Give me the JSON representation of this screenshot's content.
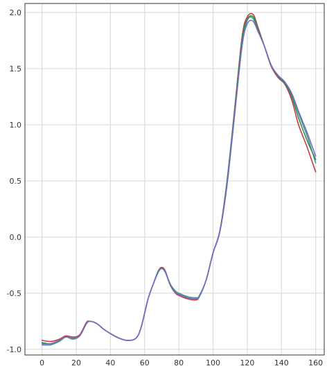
{
  "chart_data": {
    "type": "line",
    "title": "",
    "xlabel": "",
    "ylabel": "",
    "xlim": [
      -10,
      165
    ],
    "ylim": [
      -1.05,
      2.08
    ],
    "xticks": [
      0,
      20,
      40,
      60,
      80,
      100,
      120,
      140,
      160
    ],
    "yticks": [
      -1.0,
      -0.5,
      0.0,
      0.5,
      1.0,
      1.5,
      2.0
    ],
    "xtick_labels": [
      "0",
      "20",
      "40",
      "60",
      "80",
      "100",
      "120",
      "140",
      "160"
    ],
    "ytick_labels": [
      "-1.0",
      "-0.5",
      "0.0",
      "0.5",
      "1.0",
      "1.5",
      "2.0"
    ],
    "grid": true,
    "background": "#ffffff",
    "grid_color": "#dcdcdc",
    "x": [
      0,
      5,
      10,
      14,
      18,
      22,
      26,
      28,
      32,
      36,
      40,
      45,
      50,
      55,
      58,
      62,
      65,
      68,
      70,
      72,
      75,
      78,
      80,
      85,
      90,
      92,
      96,
      100,
      104,
      108,
      112,
      116,
      118,
      120,
      122,
      124,
      126,
      130,
      134,
      138,
      142,
      146,
      150,
      155,
      160
    ],
    "series": [
      {
        "color": "#4a9a8a",
        "values": [
          -0.96,
          -0.96,
          -0.93,
          -0.89,
          -0.91,
          -0.88,
          -0.77,
          -0.75,
          -0.77,
          -0.82,
          -0.86,
          -0.9,
          -0.92,
          -0.9,
          -0.8,
          -0.55,
          -0.42,
          -0.31,
          -0.28,
          -0.31,
          -0.42,
          -0.48,
          -0.5,
          -0.53,
          -0.54,
          -0.52,
          -0.38,
          -0.14,
          0.05,
          0.45,
          1.0,
          1.6,
          1.82,
          1.93,
          1.96,
          1.93,
          1.85,
          1.7,
          1.53,
          1.44,
          1.38,
          1.27,
          1.1,
          0.9,
          0.66
        ]
      },
      {
        "color": "#cc3b3b",
        "values": [
          -0.92,
          -0.93,
          -0.91,
          -0.88,
          -0.89,
          -0.87,
          -0.76,
          -0.75,
          -0.77,
          -0.82,
          -0.86,
          -0.9,
          -0.92,
          -0.9,
          -0.8,
          -0.55,
          -0.42,
          -0.3,
          -0.27,
          -0.3,
          -0.43,
          -0.5,
          -0.52,
          -0.55,
          -0.56,
          -0.53,
          -0.38,
          -0.14,
          0.06,
          0.48,
          1.05,
          1.66,
          1.88,
          1.96,
          1.99,
          1.97,
          1.88,
          1.7,
          1.52,
          1.42,
          1.36,
          1.22,
          1.0,
          0.8,
          0.58
        ]
      },
      {
        "color": "#2e8b57",
        "values": [
          -0.94,
          -0.95,
          -0.92,
          -0.89,
          -0.9,
          -0.88,
          -0.77,
          -0.75,
          -0.77,
          -0.82,
          -0.86,
          -0.9,
          -0.92,
          -0.9,
          -0.8,
          -0.55,
          -0.42,
          -0.31,
          -0.28,
          -0.31,
          -0.42,
          -0.49,
          -0.51,
          -0.54,
          -0.55,
          -0.53,
          -0.38,
          -0.14,
          0.05,
          0.47,
          1.03,
          1.63,
          1.85,
          1.94,
          1.97,
          1.95,
          1.86,
          1.7,
          1.53,
          1.43,
          1.37,
          1.25,
          1.06,
          0.86,
          0.69
        ]
      },
      {
        "color": "#7070c8",
        "values": [
          -0.95,
          -0.95,
          -0.92,
          -0.89,
          -0.9,
          -0.88,
          -0.77,
          -0.75,
          -0.77,
          -0.82,
          -0.86,
          -0.9,
          -0.92,
          -0.9,
          -0.8,
          -0.55,
          -0.42,
          -0.3,
          -0.28,
          -0.31,
          -0.43,
          -0.49,
          -0.51,
          -0.54,
          -0.55,
          -0.53,
          -0.38,
          -0.14,
          0.05,
          0.44,
          1.0,
          1.58,
          1.8,
          1.9,
          1.93,
          1.91,
          1.84,
          1.7,
          1.53,
          1.44,
          1.38,
          1.28,
          1.12,
          0.93,
          0.72
        ]
      }
    ]
  }
}
